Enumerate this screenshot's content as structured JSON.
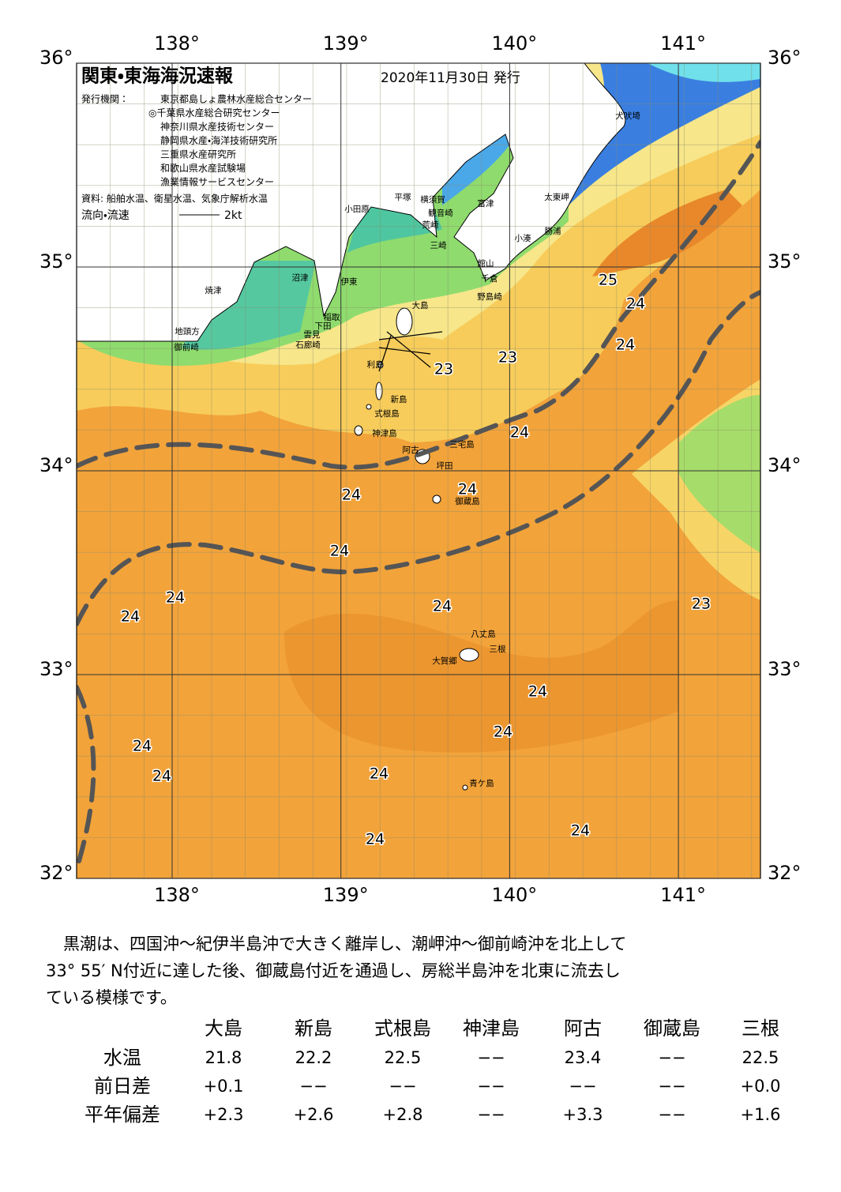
{
  "header": {
    "title": "関東・東海海況速報",
    "date": "2020年11月30日 発行"
  },
  "publisher": {
    "label": "発行機関：",
    "items": [
      "東京都島しょ農林水産総合センター",
      "◎千葉県水産総合研究センター",
      "神奈川県水産技術センター",
      "静岡県水産・海洋技術研究所",
      "三重県水産研究所",
      "和歌山県水産試験場",
      "漁業情報サービスセンター"
    ]
  },
  "source": "資料: 船舶水温、衛星水温、気象庁解析水温",
  "legend": {
    "label": "流向・流速",
    "speed": "2kt"
  },
  "axes": {
    "lon_ticks": [
      {
        "value": 138,
        "label": "138°"
      },
      {
        "value": 139,
        "label": "139°"
      },
      {
        "value": 140,
        "label": "140°"
      },
      {
        "value": 141,
        "label": "141°"
      }
    ],
    "lat_ticks": [
      {
        "value": 36,
        "label": "36°"
      },
      {
        "value": 35,
        "label": "35°"
      },
      {
        "value": 34,
        "label": "34°"
      },
      {
        "value": 33,
        "label": "33°"
      },
      {
        "value": 32,
        "label": "32°"
      }
    ]
  },
  "places": [
    "犬吠埼",
    "太東岬",
    "勝浦",
    "小湊",
    "小田原",
    "平塚",
    "横須賀",
    "観音崎",
    "富津",
    "荒崎",
    "三崎",
    "館山",
    "千倉",
    "野島崎",
    "沼津",
    "伊東",
    "焼津",
    "大島",
    "稲取",
    "下田",
    "地頭方",
    "雲見",
    "石廊崎",
    "御前崎",
    "利島",
    "新島",
    "式根島",
    "神津島",
    "阿古",
    "三宅島",
    "坪田",
    "御蔵島",
    "八丈島",
    "三根",
    "大賀郷",
    "青ケ島"
  ],
  "temperature_labels": [
    25,
    24,
    24,
    23,
    23,
    24,
    24,
    24,
    24,
    24,
    24,
    24,
    23,
    24,
    24,
    24,
    24,
    24,
    24,
    24
  ],
  "description": [
    "黒潮は、四国沖～紀伊半島沖で大きく離岸し、潮岬沖～御前崎沖を北上して",
    "33° 55′ N付近に達した後、御蔵島付近を通過し、房総半島沖を北東に流去し",
    "ている模様です。"
  ],
  "table": {
    "columns": [
      "大島",
      "新島",
      "式根島",
      "神津島",
      "阿古",
      "御蔵島",
      "三根"
    ],
    "rows": [
      {
        "label": "水温",
        "cells": [
          "21.8",
          "22.2",
          "22.5",
          "−−",
          "23.4",
          "−−",
          "22.5"
        ]
      },
      {
        "label": "前日差",
        "cells": [
          "+0.1",
          "−−",
          "−−",
          "−−",
          "−−",
          "−−",
          "+0.0"
        ]
      },
      {
        "label": "平年偏差",
        "cells": [
          "+2.3",
          "+2.6",
          "+2.8",
          "−−",
          "+3.3",
          "−−",
          "+1.6"
        ]
      }
    ]
  }
}
